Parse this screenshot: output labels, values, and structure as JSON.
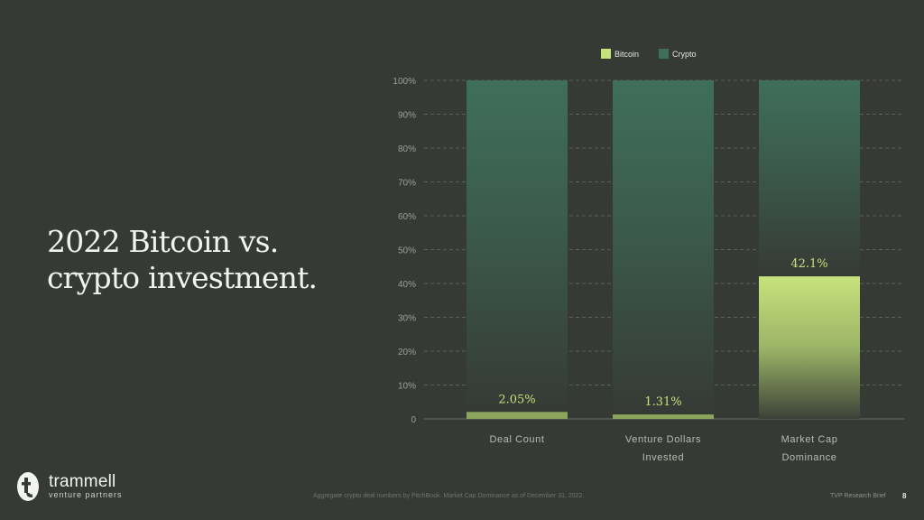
{
  "slide": {
    "title_line1": "2022 Bitcoin vs.",
    "title_line2": "crypto investment.",
    "logo_name": "trammell",
    "logo_tagline": "venture partners",
    "footnote": "Aggregate crypto deal numbers by PitchBook. Market Cap Dominance as of December 31, 2022.",
    "footer_right": "TVP Research Brief",
    "page_number": "8"
  },
  "colors": {
    "background": "#363a35",
    "bitcoin": "#c8e27c",
    "crypto": "#3f6e5c"
  },
  "chart_data": {
    "type": "bar",
    "stacked": true,
    "categories": [
      "Deal Count",
      "Venture Dollars Invested",
      "Market Cap Dominance"
    ],
    "category_lines": [
      [
        "Deal Count"
      ],
      [
        "Venture Dollars",
        "Invested"
      ],
      [
        "Market Cap",
        "Dominance"
      ]
    ],
    "series": [
      {
        "name": "Bitcoin",
        "values": [
          2.05,
          1.31,
          42.1
        ]
      },
      {
        "name": "Crypto",
        "values": [
          97.95,
          98.69,
          57.9
        ]
      }
    ],
    "data_labels": [
      "2.05%",
      "1.31%",
      "42.1%"
    ],
    "yticks": [
      "0",
      "10%",
      "20%",
      "30%",
      "40%",
      "50%",
      "60%",
      "70%",
      "80%",
      "90%",
      "100%"
    ],
    "ylim": [
      0,
      100
    ],
    "grid": true,
    "legend_position": "top"
  }
}
